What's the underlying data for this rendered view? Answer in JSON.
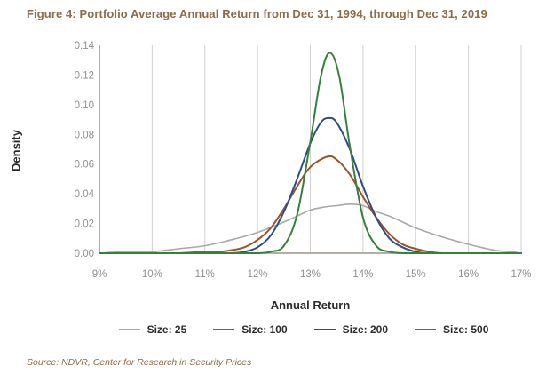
{
  "title": "Figure 4: Portfolio Average Annual Return from Dec 31, 1994, through Dec 31, 2019",
  "source": "Source: NDVR, Center for Research in Security Prices",
  "colors": {
    "title_text": "#8d6c48",
    "axis_title_text": "#2b2b2b",
    "tick_label": "#8f8f8f",
    "gridline": "#d2d0cd",
    "axis_line": "#9a948c"
  },
  "chart_data": {
    "type": "line",
    "title": "Figure 4: Portfolio Average Annual Return from Dec 31, 1994, through Dec 31, 2019",
    "xlabel": "Annual Return",
    "ylabel": "Density",
    "xlim": [
      9,
      17
    ],
    "ylim": [
      0,
      0.14
    ],
    "grid": "vertical-only",
    "legend_position": "bottom",
    "x_ticks": [
      "9%",
      "10%",
      "11%",
      "12%",
      "13%",
      "14%",
      "15%",
      "16%",
      "17%"
    ],
    "x_tick_values": [
      9,
      10,
      11,
      12,
      13,
      14,
      15,
      16,
      17
    ],
    "y_ticks": [
      "0.00",
      "0.02",
      "0.04",
      "0.06",
      "0.08",
      "0.10",
      "0.12",
      "0.14"
    ],
    "y_tick_values": [
      0,
      0.02,
      0.04,
      0.06,
      0.08,
      0.1,
      0.12,
      0.14
    ],
    "series": [
      {
        "name": "Size: 25",
        "color": "#a8a8a8",
        "peak": {
          "x": 13.75,
          "y": 0.033
        },
        "points": [
          [
            9.0,
            0
          ],
          [
            9.5,
            0.001
          ],
          [
            10.0,
            0.001
          ],
          [
            10.5,
            0.003
          ],
          [
            11.0,
            0.005
          ],
          [
            11.5,
            0.009
          ],
          [
            12.0,
            0.014
          ],
          [
            12.5,
            0.021
          ],
          [
            12.75,
            0.025
          ],
          [
            13.0,
            0.029
          ],
          [
            13.25,
            0.031
          ],
          [
            13.5,
            0.032
          ],
          [
            13.75,
            0.033
          ],
          [
            14.0,
            0.032
          ],
          [
            14.25,
            0.028
          ],
          [
            14.5,
            0.025
          ],
          [
            14.75,
            0.021
          ],
          [
            15.0,
            0.017
          ],
          [
            15.5,
            0.011
          ],
          [
            16.0,
            0.006
          ],
          [
            16.5,
            0.002
          ],
          [
            16.8,
            0.001
          ],
          [
            17.0,
            0
          ]
        ]
      },
      {
        "name": "Size: 100",
        "color": "#a0502b",
        "peak": {
          "x": 13.32,
          "y": 0.065
        },
        "points": [
          [
            9.0,
            0
          ],
          [
            10.0,
            0
          ],
          [
            10.5,
            0
          ],
          [
            11.0,
            0.001
          ],
          [
            11.25,
            0.001
          ],
          [
            11.5,
            0.002
          ],
          [
            11.75,
            0.004
          ],
          [
            12.0,
            0.009
          ],
          [
            12.25,
            0.017
          ],
          [
            12.5,
            0.03
          ],
          [
            12.75,
            0.045
          ],
          [
            13.0,
            0.058
          ],
          [
            13.32,
            0.065
          ],
          [
            13.5,
            0.063
          ],
          [
            13.75,
            0.053
          ],
          [
            14.0,
            0.038
          ],
          [
            14.25,
            0.024
          ],
          [
            14.5,
            0.013
          ],
          [
            14.75,
            0.006
          ],
          [
            15.0,
            0.003
          ],
          [
            15.25,
            0.001
          ],
          [
            15.5,
            0
          ],
          [
            16.0,
            0
          ],
          [
            17.0,
            0
          ]
        ]
      },
      {
        "name": "Size: 200",
        "color": "#2e4d80",
        "peak": {
          "x": 13.35,
          "y": 0.091
        },
        "points": [
          [
            9.0,
            0
          ],
          [
            10.0,
            0
          ],
          [
            11.0,
            0
          ],
          [
            11.5,
            0
          ],
          [
            11.75,
            0.001
          ],
          [
            12.0,
            0.004
          ],
          [
            12.25,
            0.012
          ],
          [
            12.5,
            0.028
          ],
          [
            12.75,
            0.05
          ],
          [
            13.0,
            0.074
          ],
          [
            13.2,
            0.088
          ],
          [
            13.35,
            0.091
          ],
          [
            13.5,
            0.088
          ],
          [
            13.75,
            0.07
          ],
          [
            14.0,
            0.045
          ],
          [
            14.25,
            0.024
          ],
          [
            14.5,
            0.01
          ],
          [
            14.75,
            0.004
          ],
          [
            15.0,
            0.001
          ],
          [
            15.25,
            0
          ],
          [
            16.0,
            0
          ],
          [
            17.0,
            0
          ]
        ]
      },
      {
        "name": "Size: 500",
        "color": "#37803c",
        "peak": {
          "x": 13.37,
          "y": 0.135
        },
        "points": [
          [
            9.0,
            0
          ],
          [
            10.0,
            0
          ],
          [
            11.0,
            0
          ],
          [
            11.5,
            0
          ],
          [
            12.0,
            0
          ],
          [
            12.25,
            0.001
          ],
          [
            12.5,
            0.005
          ],
          [
            12.75,
            0.026
          ],
          [
            13.0,
            0.075
          ],
          [
            13.2,
            0.119
          ],
          [
            13.37,
            0.135
          ],
          [
            13.55,
            0.119
          ],
          [
            13.75,
            0.072
          ],
          [
            14.0,
            0.024
          ],
          [
            14.25,
            0.005
          ],
          [
            14.5,
            0.001
          ],
          [
            14.75,
            0
          ],
          [
            15.0,
            0
          ],
          [
            16.0,
            0
          ],
          [
            17.0,
            0
          ]
        ]
      }
    ]
  }
}
